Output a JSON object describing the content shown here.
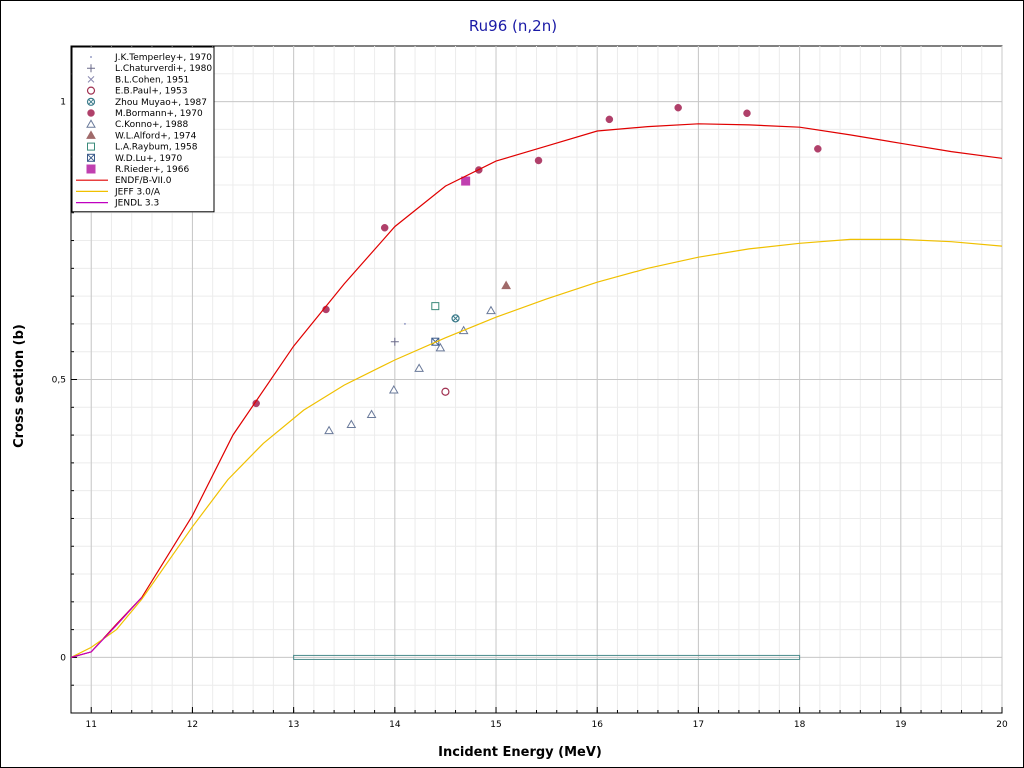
{
  "chart_data": {
    "type": "scatter",
    "title": "Ru96 (n,2n)",
    "xlabel": "Incident Energy (MeV)",
    "ylabel": "Cross section (b)",
    "xlim": [
      10.8,
      20
    ],
    "ylim": [
      -0.1,
      1.1
    ],
    "grid": true,
    "legend_position": "top-left",
    "x_ticks": [
      {
        "value": 11,
        "label": "11"
      },
      {
        "value": 12,
        "label": "12"
      },
      {
        "value": 13,
        "label": "13"
      },
      {
        "value": 14,
        "label": "14"
      },
      {
        "value": 15,
        "label": "15"
      },
      {
        "value": 16,
        "label": "16"
      },
      {
        "value": 17,
        "label": "17"
      },
      {
        "value": 18,
        "label": "18"
      },
      {
        "value": 19,
        "label": "19"
      },
      {
        "value": 20,
        "label": "20"
      }
    ],
    "y_ticks": [
      {
        "value": 0,
        "label": "0"
      },
      {
        "value": 0.5,
        "label": "0,5"
      },
      {
        "value": 1,
        "label": "1"
      }
    ],
    "series": [
      {
        "name": "J.K.Temperley+, 1970",
        "kind": "marker",
        "marker": "dot",
        "color": "#9aa0c8",
        "points": [
          [
            14.1,
            0.6
          ]
        ]
      },
      {
        "name": "L.Chaturverdi+, 1980",
        "kind": "marker",
        "marker": "plus",
        "color": "#6a6a8a",
        "points": [
          [
            14.0,
            0.568
          ]
        ]
      },
      {
        "name": "B.L.Cohen, 1951",
        "kind": "marker",
        "marker": "x",
        "color": "#8a8ab0",
        "points": []
      },
      {
        "name": "E.B.Paul+, 1953",
        "kind": "marker",
        "marker": "open-circle",
        "color": "#a03050",
        "points": [
          [
            14.5,
            0.478
          ]
        ]
      },
      {
        "name": "Zhou Muyao+, 1987",
        "kind": "marker",
        "marker": "cross-circle",
        "color": "#3a7a8a",
        "points": [
          [
            14.6,
            0.61
          ]
        ]
      },
      {
        "name": "M.Bormann+, 1970",
        "kind": "marker",
        "marker": "filled-circle",
        "color": "#b0406a",
        "points": [
          [
            12.63,
            0.457
          ],
          [
            13.32,
            0.626
          ],
          [
            13.9,
            0.773
          ],
          [
            14.83,
            0.877
          ],
          [
            15.42,
            0.894
          ],
          [
            16.12,
            0.968
          ],
          [
            16.8,
            0.989
          ],
          [
            17.48,
            0.979
          ],
          [
            18.18,
            0.915
          ]
        ]
      },
      {
        "name": "C.Konno+, 1988",
        "kind": "marker",
        "marker": "open-triangle",
        "color": "#6a7a9a",
        "points": [
          [
            13.35,
            0.408
          ],
          [
            13.57,
            0.419
          ],
          [
            13.77,
            0.437
          ],
          [
            13.99,
            0.481
          ],
          [
            14.24,
            0.52
          ],
          [
            14.45,
            0.557
          ],
          [
            14.68,
            0.588
          ],
          [
            14.95,
            0.624
          ]
        ]
      },
      {
        "name": "W.L.Alford+, 1974",
        "kind": "marker",
        "marker": "filled-triangle",
        "color": "#a06a6a",
        "points": [
          [
            15.1,
            0.669
          ]
        ]
      },
      {
        "name": "L.A.Raybum, 1958",
        "kind": "marker",
        "marker": "open-square",
        "color": "#3a8a7a",
        "points": [
          [
            14.4,
            0.632
          ]
        ]
      },
      {
        "name": "W.D.Lu+, 1970",
        "kind": "marker",
        "marker": "cross-square",
        "color": "#3a5a8a",
        "points": [
          [
            14.4,
            0.568
          ]
        ]
      },
      {
        "name": "R.Rieder+, 1966",
        "kind": "marker",
        "marker": "filled-square",
        "color": "#c040b0",
        "points": [
          [
            14.7,
            0.857
          ]
        ]
      },
      {
        "name": "ENDF/B-VII.0",
        "kind": "line",
        "color": "#e00000",
        "points": [
          [
            10.8,
            0.0
          ],
          [
            11.0,
            0.01
          ],
          [
            11.25,
            0.06
          ],
          [
            11.5,
            0.108
          ],
          [
            12.0,
            0.255
          ],
          [
            12.4,
            0.4
          ],
          [
            13.0,
            0.56
          ],
          [
            13.5,
            0.672
          ],
          [
            14.0,
            0.775
          ],
          [
            14.5,
            0.848
          ],
          [
            15.0,
            0.893
          ],
          [
            15.5,
            0.92
          ],
          [
            16.0,
            0.947
          ],
          [
            16.5,
            0.955
          ],
          [
            17.0,
            0.96
          ],
          [
            17.5,
            0.958
          ],
          [
            18.0,
            0.954
          ],
          [
            18.5,
            0.94
          ],
          [
            19.0,
            0.925
          ],
          [
            19.5,
            0.91
          ],
          [
            20.0,
            0.898
          ]
        ]
      },
      {
        "name": "JEFF 3.0/A",
        "kind": "line",
        "color": "#f0c000",
        "points": [
          [
            10.8,
            0.0
          ],
          [
            11.0,
            0.018
          ],
          [
            11.25,
            0.05
          ],
          [
            11.5,
            0.105
          ],
          [
            12.0,
            0.235
          ],
          [
            12.35,
            0.32
          ],
          [
            12.7,
            0.385
          ],
          [
            13.1,
            0.445
          ],
          [
            13.5,
            0.49
          ],
          [
            14.0,
            0.535
          ],
          [
            14.5,
            0.575
          ],
          [
            15.0,
            0.612
          ],
          [
            15.5,
            0.645
          ],
          [
            16.0,
            0.675
          ],
          [
            16.5,
            0.7
          ],
          [
            17.0,
            0.72
          ],
          [
            17.5,
            0.735
          ],
          [
            18.0,
            0.745
          ],
          [
            18.5,
            0.752
          ],
          [
            19.0,
            0.752
          ],
          [
            19.5,
            0.748
          ],
          [
            20.0,
            0.74
          ]
        ]
      },
      {
        "name": "JENDL 3.3",
        "kind": "line",
        "color": "#c000c0",
        "points": [
          [
            10.8,
            0.0
          ],
          [
            11.0,
            0.01
          ],
          [
            11.25,
            0.058
          ],
          [
            11.5,
            0.108
          ]
        ]
      },
      {
        "name": "",
        "kind": "band",
        "color": "#4a8a8a",
        "points": [
          [
            13.0,
            0.0
          ],
          [
            18.0,
            0.0
          ]
        ]
      }
    ]
  }
}
